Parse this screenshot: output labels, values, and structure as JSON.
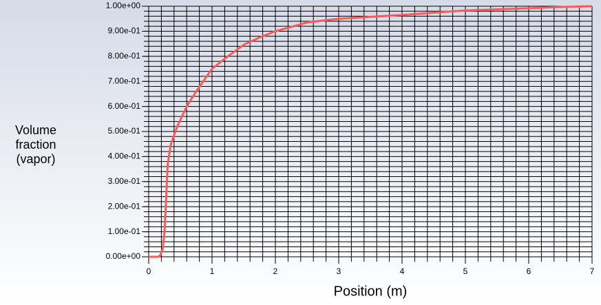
{
  "chart_data": {
    "type": "line",
    "xlabel": "Position (m)",
    "ylabel": [
      "Volume",
      "fraction",
      "(vapor)"
    ],
    "x": [
      0,
      0.15,
      0.18,
      0.22,
      0.25,
      0.27,
      0.3,
      0.35,
      0.45,
      0.6,
      0.75,
      1.0,
      1.25,
      1.5,
      1.75,
      2.0,
      2.5,
      3.0,
      4.0,
      5.0,
      6.0,
      6.5,
      7.0
    ],
    "series": [
      {
        "color": "#ff5a5a",
        "values": [
          0,
          0,
          0.005,
          0.03,
          0.1,
          0.2,
          0.37,
          0.45,
          0.52,
          0.6,
          0.66,
          0.75,
          0.8,
          0.846,
          0.875,
          0.9,
          0.935,
          0.95,
          0.965,
          0.983,
          0.992,
          0.997,
          1.0
        ]
      }
    ],
    "xlim": [
      0,
      7
    ],
    "ylim": [
      0,
      1
    ],
    "xticks": [
      0,
      1,
      2,
      3,
      4,
      5,
      6,
      7
    ],
    "yticks": [
      {
        "value": 0,
        "label": "0.00e+00"
      },
      {
        "value": 0.1,
        "label": "1.00e-01"
      },
      {
        "value": 0.2,
        "label": "2.00e-01"
      },
      {
        "value": 0.3,
        "label": "3.00e-01"
      },
      {
        "value": 0.4,
        "label": "4.00e-01"
      },
      {
        "value": 0.5,
        "label": "5.00e-01"
      },
      {
        "value": 0.6,
        "label": "6.00e-01"
      },
      {
        "value": 0.7,
        "label": "7.00e-01"
      },
      {
        "value": 0.8,
        "label": "8.00e-01"
      },
      {
        "value": 0.9,
        "label": "9.00e-01"
      },
      {
        "value": 1,
        "label": "1.00e+00"
      }
    ],
    "grid": {
      "x_step": 0.2,
      "y_step": 0.02
    }
  }
}
